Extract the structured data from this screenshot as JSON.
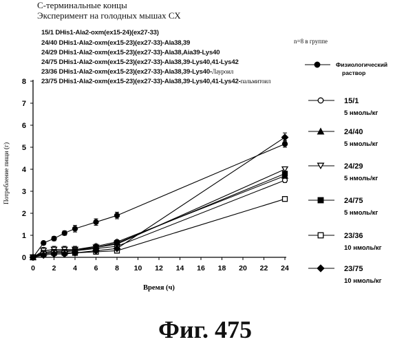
{
  "header": {
    "line1": "С-терминальные концы",
    "line2": "Эксперимент на голодных мышах СХ",
    "n_note": "n=8 в группе"
  },
  "compounds": [
    {
      "text": "15/1 DHis1-Ala2-oxm(ex15-24)(ex27-33)",
      "suffix": ""
    },
    {
      "text": "24/40 DHis1-Ala2-oxm(ex15-23)(ex27-33)-Ala38,39",
      "suffix": ""
    },
    {
      "text": "24/29 DHis1-Ala2-oxm(ex15-23)(ex27-33)-Ala38,Aia39-Lys40",
      "suffix": ""
    },
    {
      "text": "24/75 DHis1-Ala2-oxm(ex15-23)(ex27-33)-Ala38,39-Lys40,41-Lys42",
      "suffix": ""
    },
    {
      "text": "23/36 DHis1-Ala2-oxm(ex15-23)(ex27-33)-Ala38,39-Lys40-",
      "suffix": "Лауроил"
    },
    {
      "text": "23/75 DHis1-Ala2-oxm(ex15-23)(ex27-33)-Ala38,39-Lys40,41-Lys42-",
      "suffix": "пальмитоил"
    }
  ],
  "figure_label": "Фиг.  475",
  "legend": [
    {
      "id": "Физиологический",
      "dose": "раствор",
      "marker": "filled-circle"
    },
    {
      "id": "15/1",
      "dose": "5 нмоль/кг",
      "marker": "open-circle"
    },
    {
      "id": "24/40",
      "dose": "5 нмоль/кг",
      "marker": "filled-triangle"
    },
    {
      "id": "24/29",
      "dose": "5 нмоль/кг",
      "marker": "open-triangle-down"
    },
    {
      "id": "24/75",
      "dose": "5 нмоль/кг",
      "marker": "filled-square"
    },
    {
      "id": "23/36",
      "dose": "10 нмоль/кг",
      "marker": "open-square"
    },
    {
      "id": "23/75",
      "dose": "10 нмоль/кг",
      "marker": "filled-diamond"
    }
  ],
  "chart_data": {
    "type": "line",
    "xlabel": "Время (ч)",
    "ylabel": "Потребление пищи (г)",
    "xlim": [
      0,
      24
    ],
    "ylim": [
      0,
      8
    ],
    "x_ticks": [
      0,
      2,
      4,
      6,
      8,
      10,
      12,
      14,
      16,
      18,
      20,
      22,
      24
    ],
    "y_ticks": [
      0,
      1,
      2,
      3,
      4,
      5,
      6,
      7,
      8
    ],
    "grid": false,
    "legend_position": "right",
    "series": [
      {
        "name": "Физиологический раствор",
        "marker": "filled-circle",
        "x": [
          0,
          1,
          2,
          3,
          4,
          6,
          8,
          24
        ],
        "y": [
          0,
          0.65,
          0.85,
          1.1,
          1.3,
          1.6,
          1.9,
          5.15
        ],
        "err": [
          0,
          0.08,
          0.1,
          0.1,
          0.15,
          0.15,
          0.15,
          0.15
        ]
      },
      {
        "name": "15/1",
        "marker": "open-circle",
        "x": [
          0,
          1,
          2,
          3,
          4,
          6,
          8,
          24
        ],
        "y": [
          0,
          0.22,
          0.28,
          0.3,
          0.3,
          0.4,
          0.5,
          3.5
        ],
        "err": [
          0,
          0.05,
          0.05,
          0.05,
          0.08,
          0.1,
          0.1,
          0.1
        ]
      },
      {
        "name": "24/40",
        "marker": "filled-triangle",
        "x": [
          0,
          1,
          2,
          3,
          4,
          6,
          8,
          24
        ],
        "y": [
          0,
          0.3,
          0.35,
          0.35,
          0.35,
          0.5,
          0.7,
          3.7
        ],
        "err": [
          0,
          0.05,
          0.05,
          0.05,
          0.08,
          0.1,
          0.1,
          0.1
        ]
      },
      {
        "name": "24/29",
        "marker": "open-triangle-down",
        "x": [
          0,
          1,
          2,
          3,
          4,
          6,
          8,
          24
        ],
        "y": [
          0,
          0.3,
          0.35,
          0.35,
          0.35,
          0.45,
          0.6,
          4.0
        ],
        "err": [
          0,
          0.15,
          0.15,
          0.15,
          0.15,
          0.15,
          0.15,
          0.1
        ]
      },
      {
        "name": "24/75",
        "marker": "filled-square",
        "x": [
          0,
          1,
          2,
          3,
          4,
          6,
          8,
          24
        ],
        "y": [
          0,
          0.2,
          0.25,
          0.25,
          0.3,
          0.45,
          0.65,
          3.8
        ],
        "err": [
          0,
          0.05,
          0.05,
          0.05,
          0.05,
          0.1,
          0.1,
          0.1
        ]
      },
      {
        "name": "23/36",
        "marker": "open-square",
        "x": [
          0,
          1,
          2,
          3,
          4,
          6,
          8,
          24
        ],
        "y": [
          0,
          0.15,
          0.2,
          0.2,
          0.2,
          0.25,
          0.3,
          2.65
        ],
        "err": [
          0,
          0.05,
          0.05,
          0.05,
          0.05,
          0.05,
          0.05,
          0.05
        ]
      },
      {
        "name": "23/75",
        "marker": "filled-diamond",
        "x": [
          0,
          1,
          2,
          3,
          4,
          6,
          8,
          24
        ],
        "y": [
          0,
          0.1,
          0.15,
          0.15,
          0.2,
          0.3,
          0.4,
          5.45
        ],
        "err": [
          0,
          0.05,
          0.05,
          0.05,
          0.05,
          0.05,
          0.05,
          0.2
        ]
      }
    ]
  }
}
